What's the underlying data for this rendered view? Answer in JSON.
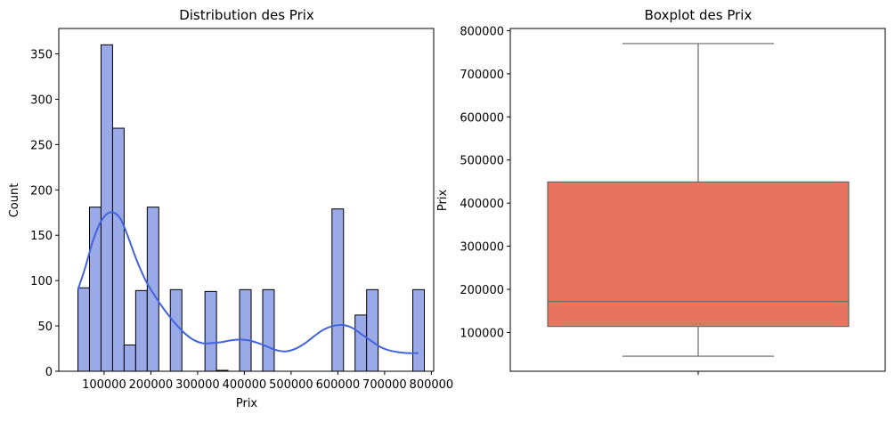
{
  "chart_data": [
    {
      "type": "bar",
      "subtype": "histogram-with-kde",
      "title": "Distribution des Prix",
      "xlabel": "Prix",
      "ylabel": "Count",
      "xlim": [
        3000,
        805000
      ],
      "ylim": [
        0,
        378
      ],
      "xticks": [
        100000,
        200000,
        300000,
        400000,
        500000,
        600000,
        700000,
        800000
      ],
      "xtick_labels": [
        "100000",
        "200000",
        "300000",
        "400000",
        "500000",
        "600000",
        "700000",
        "800000"
      ],
      "yticks": [
        0,
        50,
        100,
        150,
        200,
        250,
        300,
        350
      ],
      "ytick_labels": [
        "0",
        "50",
        "100",
        "150",
        "200",
        "250",
        "300",
        "350"
      ],
      "bin_width": 24700,
      "bins": [
        {
          "x0": 44000,
          "count": 92
        },
        {
          "x0": 68700,
          "count": 181
        },
        {
          "x0": 93400,
          "count": 360
        },
        {
          "x0": 118100,
          "count": 268
        },
        {
          "x0": 142800,
          "count": 29
        },
        {
          "x0": 167500,
          "count": 89
        },
        {
          "x0": 192200,
          "count": 181
        },
        {
          "x0": 216900,
          "count": 0
        },
        {
          "x0": 241600,
          "count": 90
        },
        {
          "x0": 266300,
          "count": 0
        },
        {
          "x0": 291000,
          "count": 0
        },
        {
          "x0": 315700,
          "count": 88
        },
        {
          "x0": 340400,
          "count": 1
        },
        {
          "x0": 365100,
          "count": 0
        },
        {
          "x0": 389800,
          "count": 90
        },
        {
          "x0": 414500,
          "count": 0
        },
        {
          "x0": 439200,
          "count": 90
        },
        {
          "x0": 463900,
          "count": 0
        },
        {
          "x0": 488600,
          "count": 0
        },
        {
          "x0": 513300,
          "count": 0
        },
        {
          "x0": 538000,
          "count": 0
        },
        {
          "x0": 562700,
          "count": 0
        },
        {
          "x0": 587400,
          "count": 179
        },
        {
          "x0": 612100,
          "count": 0
        },
        {
          "x0": 636800,
          "count": 62
        },
        {
          "x0": 661500,
          "count": 90
        },
        {
          "x0": 686200,
          "count": 0
        },
        {
          "x0": 710900,
          "count": 0
        },
        {
          "x0": 735600,
          "count": 0
        },
        {
          "x0": 760300,
          "count": 90
        }
      ],
      "kde": {
        "x": [
          44000,
          60000,
          75000,
          90000,
          105000,
          120000,
          135000,
          150000,
          170000,
          190000,
          210000,
          230000,
          250000,
          270000,
          290000,
          310000,
          330000,
          350000,
          370000,
          390000,
          410000,
          430000,
          450000,
          470000,
          490000,
          510000,
          530000,
          550000,
          570000,
          590000,
          610000,
          630000,
          650000,
          670000,
          690000,
          710000,
          730000,
          750000,
          772000
        ],
        "y": [
          90,
          115,
          142,
          162,
          173,
          175,
          168,
          150,
          122,
          99,
          82,
          67,
          54,
          43,
          35,
          31,
          31,
          32,
          34,
          35,
          34,
          31,
          27,
          23,
          22,
          25,
          31,
          39,
          46,
          50,
          51,
          48,
          41,
          34,
          27,
          23,
          21,
          20,
          20
        ]
      },
      "colors": {
        "bar_fill": "#9aaae8",
        "bar_edge": "#000000",
        "kde_line": "#4163dc"
      },
      "grid": false
    },
    {
      "type": "boxplot",
      "title": "Boxplot des Prix",
      "xlabel": "",
      "ylabel": "Prix",
      "ylim": [
        10000,
        805000
      ],
      "yticks": [
        100000,
        200000,
        300000,
        400000,
        500000,
        600000,
        700000,
        800000
      ],
      "ytick_labels": [
        "100000",
        "200000",
        "300000",
        "400000",
        "500000",
        "600000",
        "700000",
        "800000"
      ],
      "box": {
        "whisker_low": 45000,
        "q1": 114000,
        "median": 172000,
        "q3": 449000,
        "whisker_high": 770000
      },
      "colors": {
        "box_fill": "#e8735f",
        "line": "#666666"
      },
      "grid": false
    }
  ]
}
